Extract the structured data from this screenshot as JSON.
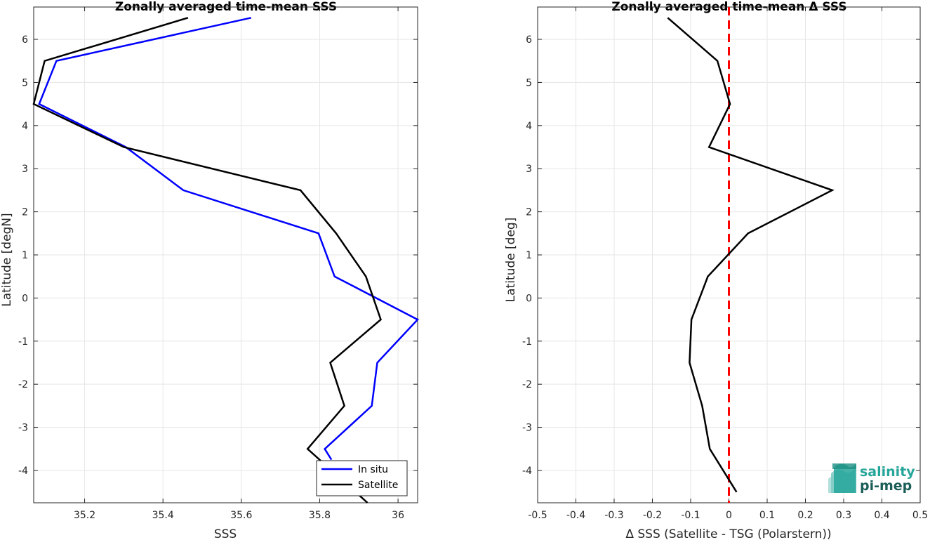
{
  "chart_data": [
    {
      "type": "line",
      "title": "Zonally averaged time-mean SSS",
      "xlabel": "SSS",
      "ylabel": "Latitude [degN]",
      "xlim": [
        35.07,
        36.05
      ],
      "ylim": [
        -4.75,
        6.75
      ],
      "xticks": [
        35.2,
        35.4,
        35.6,
        35.8,
        36
      ],
      "xtick_labels": [
        "35.2",
        "35.4",
        "35.6",
        "35.8",
        "36"
      ],
      "yticks": [
        -4,
        -3,
        -2,
        -1,
        0,
        1,
        2,
        3,
        4,
        5,
        6
      ],
      "ytick_labels": [
        "-4",
        "-3",
        "-2",
        "-1",
        "0",
        "1",
        "2",
        "3",
        "4",
        "5",
        "6"
      ],
      "grid": true,
      "legend": "bottom-right",
      "series": [
        {
          "name": "In situ",
          "color": "#0000ff",
          "x": [
            35.625,
            35.128,
            35.084,
            35.305,
            35.452,
            35.797,
            35.838,
            36.05,
            35.947,
            35.933,
            35.813,
            35.83
          ],
          "y": [
            6.5,
            5.5,
            4.5,
            3.5,
            2.5,
            1.5,
            0.5,
            -0.5,
            -1.5,
            -2.5,
            -3.5,
            -3.75
          ]
        },
        {
          "name": "Satellite",
          "color": "#000000",
          "x": [
            35.464,
            35.098,
            35.07,
            35.3,
            35.751,
            35.842,
            35.918,
            35.956,
            35.827,
            35.863,
            35.769,
            35.922
          ],
          "y": [
            6.5,
            5.5,
            4.5,
            3.5,
            2.5,
            1.5,
            0.5,
            -0.5,
            -1.5,
            -2.5,
            -3.5,
            -4.75
          ]
        }
      ]
    },
    {
      "type": "line",
      "title": "Zonally averaged time-mean Δ SSS",
      "xlabel": "Δ SSS (Satellite - TSG (Polarstern))",
      "ylabel": "Latitude [deg]",
      "xlim": [
        -0.5,
        0.5
      ],
      "ylim": [
        -4.75,
        6.75
      ],
      "xticks": [
        -0.5,
        -0.4,
        -0.3,
        -0.2,
        -0.1,
        0,
        0.1,
        0.2,
        0.3,
        0.4,
        0.5
      ],
      "xtick_labels": [
        "-0.5",
        "-0.4",
        "-0.3",
        "-0.2",
        "-0.1",
        "0",
        "0.1",
        "0.2",
        "0.3",
        "0.4",
        "0.5"
      ],
      "yticks": [
        -4,
        -3,
        -2,
        -1,
        0,
        1,
        2,
        3,
        4,
        5,
        6
      ],
      "ytick_labels": [
        "-4",
        "-3",
        "-2",
        "-1",
        "0",
        "1",
        "2",
        "3",
        "4",
        "5",
        "6"
      ],
      "grid": true,
      "series": [
        {
          "color": "#000000",
          "x": [
            -0.16,
            -0.03,
            0.003,
            -0.052,
            0.27,
            0.05,
            -0.055,
            -0.098,
            -0.103,
            -0.07,
            -0.05,
            0.02
          ],
          "y": [
            6.5,
            5.5,
            4.5,
            3.5,
            2.5,
            1.5,
            0.5,
            -0.5,
            -1.5,
            -2.5,
            -3.5,
            -4.5
          ]
        }
      ],
      "reference_line": {
        "x": 0,
        "color": "#ff0000",
        "style": "dashed"
      }
    }
  ],
  "logo": {
    "line1": "salinity",
    "line2": "pi-mep",
    "color1": "#26a69a",
    "color2": "#1b5e57"
  }
}
